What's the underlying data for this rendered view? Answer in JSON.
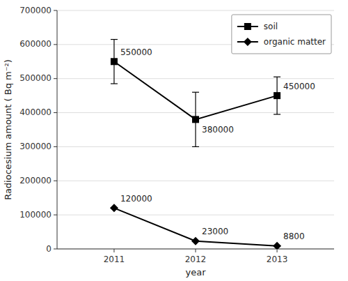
{
  "chart_data": {
    "type": "line",
    "xlabel": "year",
    "ylabel": "Radiocesium amount  ( Bq m⁻²)",
    "x": [
      2011,
      2012,
      2013
    ],
    "xlim": [
      2010.3,
      2013.7
    ],
    "xticks": [
      2011,
      2012,
      2013
    ],
    "ylim": [
      0,
      700000
    ],
    "yticks": [
      0,
      100000,
      200000,
      300000,
      400000,
      500000,
      600000,
      700000
    ],
    "grid": true,
    "legend": "upper right",
    "data_labels": true,
    "series": [
      {
        "name": "soil",
        "color": "#000000",
        "marker": "square",
        "line_style": "solid",
        "values": [
          550000,
          380000,
          450000
        ],
        "errors": [
          65000,
          80000,
          55000
        ]
      },
      {
        "name": "organic matter",
        "color": "#000000",
        "marker": "diamond",
        "line_style": "solid",
        "values": [
          120000,
          23000,
          8800
        ],
        "errors": [
          0,
          0,
          0
        ]
      }
    ]
  }
}
